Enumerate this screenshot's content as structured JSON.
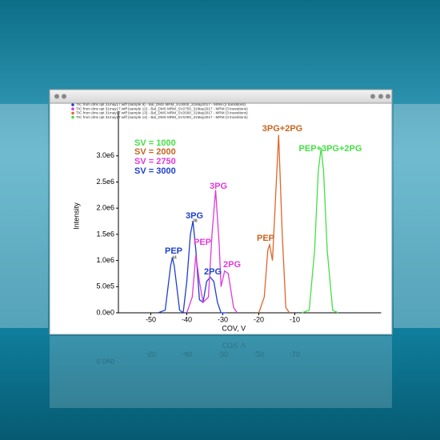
{
  "chart_data": {
    "type": "line",
    "legend": "upper left",
    "xlabel": "COV, V",
    "ylabel": "Intensity",
    "xlim": [
      -59,
      14
    ],
    "xticks": [
      -50,
      -40,
      -30,
      -20,
      -10
    ],
    "ylim": [
      0,
      3700000
    ],
    "yticks": [
      {
        "value": 0,
        "label": "0.0e0"
      },
      {
        "value": 500000,
        "label": "5.0e5"
      },
      {
        "value": 1000000,
        "label": "1.0e6"
      },
      {
        "value": 1500000,
        "label": "1.5e6"
      },
      {
        "value": 2000000,
        "label": "2.0e6"
      },
      {
        "value": 2500000,
        "label": "2.5e6"
      },
      {
        "value": 3000000,
        "label": "3.0e6"
      }
    ],
    "series": [
      {
        "name": "TIC from dms opt 31may17.wiff (sample 9) - Bal_DMS MRM_SV3000_31May2017 - MRM (3 transitions)",
        "color": "#1f3fd0",
        "x": [
          -48,
          -46,
          -44.5,
          -44,
          -43.5,
          -42,
          -41,
          -40,
          -39,
          -38.3,
          -37.5,
          -36.5,
          -35.5,
          -34.5,
          -33.5,
          -32.5,
          -31.5,
          -30.5,
          -29
        ],
        "values": [
          0,
          50000,
          900000,
          1050000,
          900000,
          50000,
          0,
          600000,
          1500000,
          1750000,
          1200000,
          250000,
          200000,
          600000,
          680000,
          600000,
          200000,
          0,
          0
        ]
      },
      {
        "name": "TIC from dms opt 31may17.wiff (sample 12) - Bal_DMS MRM_SV2750_31May2017 - MRM (3 transitions)",
        "color": "#e03ad8",
        "x": [
          -40,
          -38.5,
          -37.5,
          -36.5,
          -35.5,
          -34,
          -33,
          -32,
          -31,
          -30.5,
          -29.5,
          -28.5,
          -27,
          -26
        ],
        "values": [
          0,
          300000,
          1100000,
          600000,
          200000,
          300000,
          1500000,
          2350000,
          1300000,
          500000,
          800000,
          750000,
          100000,
          0
        ]
      },
      {
        "name": "TIC from dms opt 31may17.wiff (sample 13) - Bal_DMS MRM_SV2000_31May2017 - MRM (3 transitions)",
        "color": "#e0662a",
        "x": [
          -20,
          -18.5,
          -17.5,
          -17,
          -16.2,
          -15.5,
          -14.5,
          -13.5,
          -12.5,
          -11.5
        ],
        "values": [
          0,
          300000,
          1200000,
          1300000,
          1000000,
          2000000,
          3400000,
          1500000,
          100000,
          0
        ]
      },
      {
        "name": "TIC from dms opt 31may17.wiff (sample 14) - Bal_DMS MRM_SV1000_31May2017 - MRM (3 transitions)",
        "color": "#44e044",
        "x": [
          -8,
          -6,
          -4.5,
          -3.5,
          -2.7,
          -2,
          -1,
          0.5,
          2
        ],
        "values": [
          0,
          50000,
          1200000,
          2700000,
          3150000,
          2700000,
          1200000,
          50000,
          0
        ]
      }
    ],
    "annotations": [
      {
        "text": "SV = 1000",
        "color": "#44e044"
      },
      {
        "text": "SV = 2000",
        "color": "#c8641e"
      },
      {
        "text": "SV = 2750",
        "color": "#e03ad8"
      },
      {
        "text": "SV = 3000",
        "color": "#1f3fd0"
      },
      {
        "text": "PEP",
        "color": "#1f3fd0"
      },
      {
        "text": "-44",
        "color": "#555555"
      },
      {
        "text": "3PG",
        "color": "#1f3fd0"
      },
      {
        "text": "-38",
        "color": "#555555"
      },
      {
        "text": "2PG",
        "color": "#1f3fd0"
      },
      {
        "text": "PEP",
        "color": "#e03ad8"
      },
      {
        "text": "3PG",
        "color": "#e03ad8"
      },
      {
        "text": "2PG",
        "color": "#e03ad8"
      },
      {
        "text": "PEP",
        "color": "#c8641e"
      },
      {
        "text": "3PG+2PG",
        "color": "#c8641e"
      },
      {
        "text": "PEP+3PG+2PG",
        "color": "#44e044"
      }
    ]
  }
}
